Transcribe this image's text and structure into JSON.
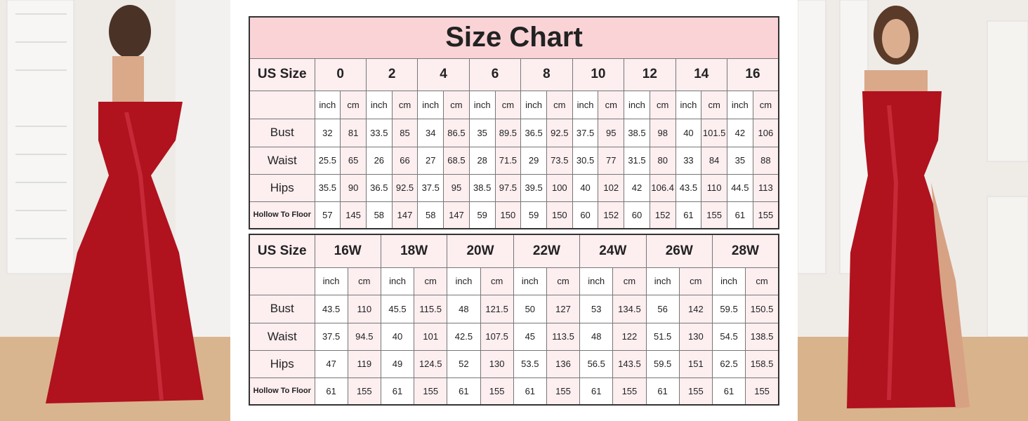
{
  "title": "Size Chart",
  "size_label": "US Size",
  "units": [
    "inch",
    "cm"
  ],
  "row_labels": [
    "Bust",
    "Waist",
    "Hips",
    "Hollow To Floor"
  ],
  "colors": {
    "title_bg": "#fad3d7",
    "header_bg": "#fdeef0",
    "cm_column_bg": "#fdeef0",
    "dress": "#b0121e"
  },
  "table_regular": {
    "sizes": [
      "0",
      "2",
      "4",
      "6",
      "8",
      "10",
      "12",
      "14",
      "16"
    ],
    "rows": [
      [
        "32",
        "81",
        "33.5",
        "85",
        "34",
        "86.5",
        "35",
        "89.5",
        "36.5",
        "92.5",
        "37.5",
        "95",
        "38.5",
        "98",
        "40",
        "101.5",
        "42",
        "106"
      ],
      [
        "25.5",
        "65",
        "26",
        "66",
        "27",
        "68.5",
        "28",
        "71.5",
        "29",
        "73.5",
        "30.5",
        "77",
        "31.5",
        "80",
        "33",
        "84",
        "35",
        "88"
      ],
      [
        "35.5",
        "90",
        "36.5",
        "92.5",
        "37.5",
        "95",
        "38.5",
        "97.5",
        "39.5",
        "100",
        "40",
        "102",
        "42",
        "106.4",
        "43.5",
        "110",
        "44.5",
        "113"
      ],
      [
        "57",
        "145",
        "58",
        "147",
        "58",
        "147",
        "59",
        "150",
        "59",
        "150",
        "60",
        "152",
        "60",
        "152",
        "61",
        "155",
        "61",
        "155"
      ]
    ]
  },
  "table_plus": {
    "sizes": [
      "16W",
      "18W",
      "20W",
      "22W",
      "24W",
      "26W",
      "28W"
    ],
    "rows": [
      [
        "43.5",
        "110",
        "45.5",
        "115.5",
        "48",
        "121.5",
        "50",
        "127",
        "53",
        "134.5",
        "56",
        "142",
        "59.5",
        "150.5"
      ],
      [
        "37.5",
        "94.5",
        "40",
        "101",
        "42.5",
        "107.5",
        "45",
        "113.5",
        "48",
        "122",
        "51.5",
        "130",
        "54.5",
        "138.5"
      ],
      [
        "47",
        "119",
        "49",
        "124.5",
        "52",
        "130",
        "53.5",
        "136",
        "56.5",
        "143.5",
        "59.5",
        "151",
        "62.5",
        "158.5"
      ],
      [
        "61",
        "155",
        "61",
        "155",
        "61",
        "155",
        "61",
        "155",
        "61",
        "155",
        "61",
        "155",
        "61",
        "155"
      ]
    ]
  }
}
